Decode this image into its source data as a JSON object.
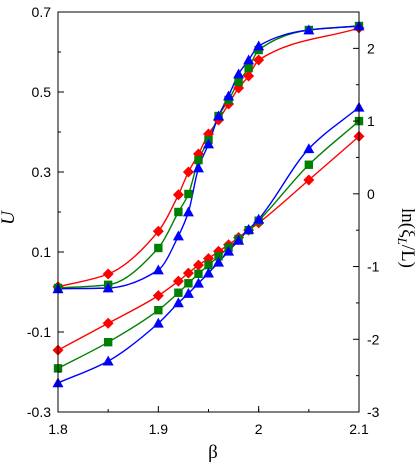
{
  "chart_data": {
    "type": "line",
    "xlabel": "β",
    "ylabel_left": "U",
    "ylabel_right": "ln(ξ",
    "ylabel_right_sub": "L",
    "ylabel_right_tail": "/L)",
    "xlim": [
      1.8,
      2.1
    ],
    "ylim_left": [
      -0.3,
      0.7
    ],
    "ylim_right": [
      -3,
      2.5
    ],
    "x_ticks": [
      "1.8",
      "1.9",
      "2",
      "2.1"
    ],
    "y_left_ticks": [
      "0.7",
      "0.5",
      "0.3",
      "0.1",
      "-0.1",
      "-0.3"
    ],
    "y_right_ticks": [
      "2",
      "1",
      "0",
      "-1",
      "-2",
      "-3"
    ],
    "grid": false,
    "series": [
      {
        "color": "#ff0000",
        "marker": "diamond",
        "axis": "left",
        "x": [
          1.8,
          1.85,
          1.9,
          1.92,
          1.93,
          1.94,
          1.95,
          1.96,
          1.97,
          1.98,
          1.99,
          2.0,
          2.1
        ],
        "y": [
          0.013,
          0.045,
          0.152,
          0.243,
          0.3,
          0.345,
          0.395,
          0.43,
          0.47,
          0.51,
          0.54,
          0.58,
          0.66
        ]
      },
      {
        "color": "#008000",
        "marker": "square",
        "axis": "left",
        "x": [
          1.8,
          1.85,
          1.9,
          1.92,
          1.93,
          1.94,
          1.95,
          1.96,
          1.97,
          1.98,
          1.99,
          2.0,
          2.05,
          2.1
        ],
        "y": [
          0.01,
          0.018,
          0.11,
          0.2,
          0.245,
          0.33,
          0.38,
          0.44,
          0.48,
          0.525,
          0.56,
          0.605,
          0.655,
          0.665
        ]
      },
      {
        "color": "#0000ff",
        "marker": "triangle",
        "axis": "left",
        "x": [
          1.8,
          1.85,
          1.9,
          1.92,
          1.93,
          1.94,
          1.95,
          1.96,
          1.97,
          1.98,
          1.99,
          2.0,
          2.05,
          2.1
        ],
        "y": [
          0.008,
          0.01,
          0.055,
          0.14,
          0.2,
          0.31,
          0.37,
          0.44,
          0.49,
          0.545,
          0.58,
          0.615,
          0.655,
          0.665
        ]
      },
      {
        "color": "#ff0000",
        "marker": "diamond",
        "axis": "right",
        "x": [
          1.8,
          1.85,
          1.9,
          1.92,
          1.93,
          1.94,
          1.95,
          1.96,
          1.97,
          1.98,
          1.99,
          2.0,
          2.05,
          2.1
        ],
        "y": [
          -2.15,
          -1.78,
          -1.4,
          -1.2,
          -1.09,
          -0.98,
          -0.89,
          -0.79,
          -0.7,
          -0.6,
          -0.5,
          -0.4,
          0.19,
          0.79
        ]
      },
      {
        "color": "#008000",
        "marker": "square",
        "axis": "right",
        "x": [
          1.8,
          1.85,
          1.9,
          1.92,
          1.93,
          1.94,
          1.95,
          1.96,
          1.97,
          1.98,
          1.99,
          2.0,
          2.05,
          2.1
        ],
        "y": [
          -2.4,
          -2.04,
          -1.6,
          -1.36,
          -1.23,
          -1.1,
          -0.98,
          -0.86,
          -0.74,
          -0.62,
          -0.5,
          -0.37,
          0.4,
          1.0
        ]
      },
      {
        "color": "#0000ff",
        "marker": "triangle",
        "axis": "right",
        "x": [
          1.8,
          1.85,
          1.9,
          1.92,
          1.93,
          1.94,
          1.95,
          1.96,
          1.97,
          1.98,
          1.99,
          2.0,
          2.05,
          2.1
        ],
        "y": [
          -2.6,
          -2.3,
          -1.78,
          -1.5,
          -1.37,
          -1.23,
          -1.09,
          -0.94,
          -0.79,
          -0.64,
          -0.49,
          -0.35,
          0.62,
          1.19
        ]
      }
    ]
  }
}
